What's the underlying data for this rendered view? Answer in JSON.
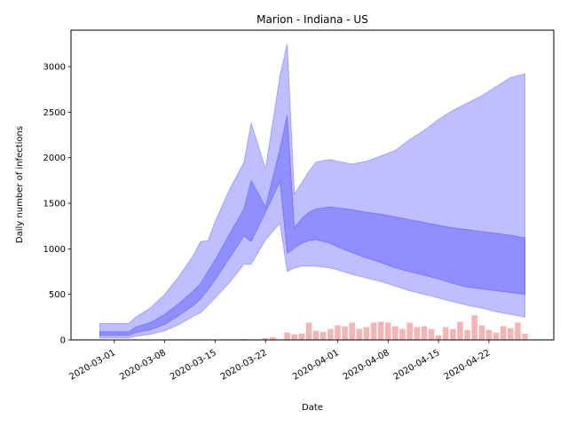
{
  "chart_data": {
    "type": "area",
    "title": "Marion - Indiana - US",
    "xlabel": "Date",
    "ylabel": "Daily number of infections",
    "x_ticks": [
      "2020-03-01",
      "2020-03-08",
      "2020-03-15",
      "2020-03-22",
      "2020-04-01",
      "2020-04-08",
      "2020-04-15",
      "2020-04-22"
    ],
    "y_ticks": [
      0,
      500,
      1000,
      1500,
      2000,
      2500,
      3000
    ],
    "xlim": [
      "2020-02-24",
      "2020-05-01"
    ],
    "ylim": [
      0,
      3400
    ],
    "grid": false,
    "colors": {
      "band": "#0000ff",
      "observed": "#f08080"
    },
    "bands": [
      {
        "x": [
          "2020-02-28",
          "2020-03-03",
          "2020-03-04",
          "2020-03-06",
          "2020-03-08",
          "2020-03-10",
          "2020-03-12",
          "2020-03-13",
          "2020-03-14",
          "2020-03-15",
          "2020-03-17",
          "2020-03-19",
          "2020-03-20",
          "2020-03-22",
          "2020-03-24",
          "2020-03-25",
          "2020-03-26",
          "2020-03-27",
          "2020-03-28",
          "2020-03-29",
          "2020-03-30",
          "2020-03-31",
          "2020-04-01",
          "2020-04-03",
          "2020-04-05",
          "2020-04-07",
          "2020-04-09",
          "2020-04-11",
          "2020-04-13",
          "2020-04-15",
          "2020-04-17",
          "2020-04-19",
          "2020-04-21",
          "2020-04-23",
          "2020-04-25",
          "2020-04-27"
        ],
        "lower": [
          20,
          20,
          40,
          60,
          100,
          170,
          260,
          300,
          380,
          460,
          630,
          830,
          830,
          1100,
          1280,
          750,
          790,
          810,
          810,
          810,
          800,
          790,
          770,
          720,
          680,
          640,
          590,
          540,
          500,
          460,
          420,
          380,
          350,
          310,
          280,
          250
        ],
        "upper": [
          180,
          180,
          250,
          350,
          500,
          700,
          930,
          1080,
          1090,
          1300,
          1650,
          1950,
          2380,
          1880,
          2900,
          3250,
          1600,
          1720,
          1850,
          1950,
          1970,
          1980,
          1960,
          1930,
          1960,
          2020,
          2080,
          2200,
          2300,
          2420,
          2520,
          2600,
          2680,
          2780,
          2880,
          2920
        ]
      },
      {
        "x": [
          "2020-02-28",
          "2020-03-03",
          "2020-03-04",
          "2020-03-06",
          "2020-03-08",
          "2020-03-10",
          "2020-03-12",
          "2020-03-13",
          "2020-03-14",
          "2020-03-15",
          "2020-03-17",
          "2020-03-19",
          "2020-03-20",
          "2020-03-22",
          "2020-03-24",
          "2020-03-25",
          "2020-03-26",
          "2020-03-27",
          "2020-03-28",
          "2020-03-29",
          "2020-03-30",
          "2020-03-31",
          "2020-04-01",
          "2020-04-03",
          "2020-04-05",
          "2020-04-07",
          "2020-04-09",
          "2020-04-11",
          "2020-04-13",
          "2020-04-15",
          "2020-04-17",
          "2020-04-19",
          "2020-04-21",
          "2020-04-23",
          "2020-04-25",
          "2020-04-27"
        ],
        "lower": [
          50,
          50,
          80,
          110,
          170,
          270,
          380,
          450,
          550,
          660,
          900,
          1140,
          1080,
          1400,
          1740,
          950,
          1010,
          1060,
          1090,
          1100,
          1080,
          1060,
          1020,
          960,
          900,
          850,
          790,
          750,
          710,
          670,
          620,
          580,
          560,
          540,
          520,
          500
        ],
        "upper": [
          90,
          90,
          140,
          190,
          280,
          400,
          540,
          620,
          750,
          880,
          1160,
          1440,
          1750,
          1460,
          2100,
          2470,
          1230,
          1330,
          1400,
          1440,
          1450,
          1460,
          1450,
          1430,
          1400,
          1380,
          1350,
          1320,
          1290,
          1260,
          1230,
          1210,
          1190,
          1170,
          1150,
          1120
        ]
      }
    ],
    "observed": {
      "x": [
        "2020-03-19",
        "2020-03-21",
        "2020-03-22",
        "2020-03-23",
        "2020-03-25",
        "2020-03-26",
        "2020-03-27",
        "2020-03-28",
        "2020-03-29",
        "2020-03-30",
        "2020-03-31",
        "2020-04-01",
        "2020-04-02",
        "2020-04-03",
        "2020-04-04",
        "2020-04-05",
        "2020-04-06",
        "2020-04-07",
        "2020-04-08",
        "2020-04-09",
        "2020-04-10",
        "2020-04-11",
        "2020-04-12",
        "2020-04-13",
        "2020-04-14",
        "2020-04-15",
        "2020-04-16",
        "2020-04-17",
        "2020-04-18",
        "2020-04-19",
        "2020-04-20",
        "2020-04-21",
        "2020-04-22",
        "2020-04-23",
        "2020-04-24",
        "2020-04-25",
        "2020-04-26",
        "2020-04-27"
      ],
      "values": [
        10,
        5,
        20,
        30,
        80,
        60,
        70,
        190,
        100,
        90,
        120,
        160,
        150,
        190,
        120,
        140,
        190,
        200,
        190,
        150,
        120,
        190,
        140,
        150,
        120,
        50,
        140,
        120,
        200,
        110,
        270,
        160,
        110,
        80,
        150,
        130,
        190,
        70
      ]
    }
  }
}
